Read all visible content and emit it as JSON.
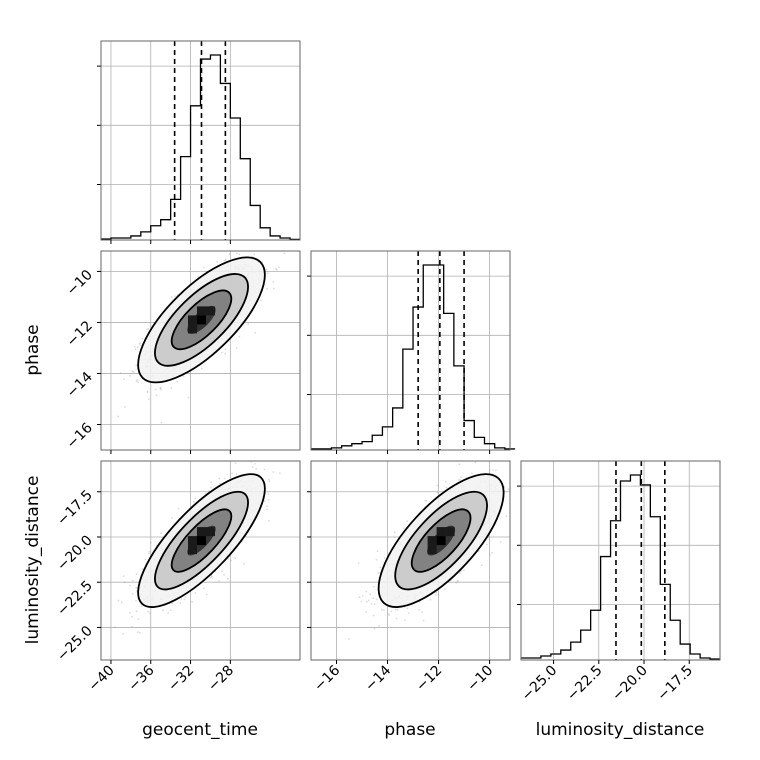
{
  "chart_data": {
    "type": "corner",
    "parameters": [
      "geocent_time",
      "phase",
      "luminosity_distance"
    ],
    "axis_labels": [
      "geocent_time",
      "phase",
      "luminosity_distance"
    ],
    "ticks": {
      "geocent_time": {
        "values": [
          -40,
          -36,
          -32,
          -28
        ],
        "labels": [
          "−40",
          "−36",
          "−32",
          "−28"
        ],
        "range": [
          -41,
          -21
        ]
      },
      "phase": {
        "values": [
          -16,
          -14,
          -12,
          -10
        ],
        "labels": [
          "−16",
          "−14",
          "−12",
          "−10"
        ],
        "range": [
          -17,
          -9.2
        ]
      },
      "luminosity_distance": {
        "values": [
          -25.0,
          -22.5,
          -20.0,
          -17.5
        ],
        "labels": [
          "−25.0",
          "−22.5",
          "−20.0",
          "−17.5"
        ],
        "range": [
          -26.8,
          -15.8
        ]
      }
    },
    "grid": true,
    "quantiles": {
      "geocent_time": [
        -33.6,
        -30.9,
        -28.5
      ],
      "phase": [
        -12.8,
        -11.95,
        -11.0
      ],
      "luminosity_distance": [
        -21.55,
        -20.15,
        -18.85
      ]
    },
    "histograms": {
      "geocent_time": {
        "bin_edges": [
          -41,
          -40,
          -39,
          -38,
          -37,
          -36,
          -35,
          -34,
          -33,
          -32,
          -31,
          -30,
          -29,
          -28,
          -27,
          -26,
          -25,
          -24,
          -23,
          -22,
          -21
        ],
        "counts": [
          0.5,
          1,
          1,
          2,
          4,
          7,
          10,
          20,
          41,
          66,
          89,
          91,
          77,
          60,
          40,
          17,
          6,
          2,
          1,
          0.3
        ]
      },
      "phase": {
        "bin_edges": [
          -17,
          -16.6,
          -16.2,
          -15.8,
          -15.4,
          -15,
          -14.6,
          -14.2,
          -13.8,
          -13.4,
          -13,
          -12.6,
          -12.2,
          -11.8,
          -11.4,
          -11,
          -10.6,
          -10.2,
          -9.8,
          -9.4,
          -9
        ],
        "counts": [
          0.5,
          0.5,
          1,
          2,
          3,
          4,
          7,
          11,
          20,
          48,
          68,
          88,
          88,
          65,
          40,
          14,
          6,
          3,
          1,
          0.5
        ]
      },
      "luminosity_distance": {
        "bin_edges": [
          -26.8,
          -26.25,
          -25.7,
          -25.15,
          -24.6,
          -24.05,
          -23.5,
          -22.95,
          -22.4,
          -21.85,
          -21.3,
          -20.75,
          -20.2,
          -19.65,
          -19.1,
          -18.55,
          -18,
          -17.45,
          -16.9,
          -16.35,
          -15.8
        ],
        "counts": [
          1,
          1,
          2,
          3,
          5,
          9,
          15,
          25,
          52,
          70,
          90,
          93,
          88,
          72,
          38,
          20,
          8,
          3,
          1,
          0.5
        ]
      }
    },
    "joint": [
      {
        "x": "geocent_time",
        "y": "phase",
        "mean": [
          -30.9,
          -11.9
        ],
        "sd": [
          2.6,
          1.0
        ],
        "corr": 0.72
      },
      {
        "x": "geocent_time",
        "y": "luminosity_distance",
        "mean": [
          -30.9,
          -20.2
        ],
        "sd": [
          2.6,
          1.5
        ],
        "corr": 0.78
      },
      {
        "x": "phase",
        "y": "luminosity_distance",
        "mean": [
          -11.9,
          -20.2
        ],
        "sd": [
          1.0,
          1.5
        ],
        "corr": 0.72
      }
    ]
  }
}
